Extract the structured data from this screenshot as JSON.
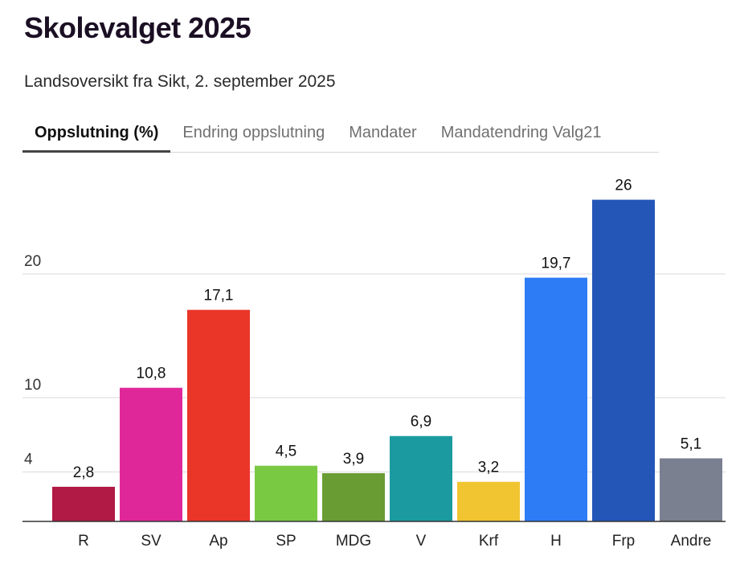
{
  "header": {
    "title": "Skolevalget 2025",
    "subtitle": "Landsoversikt fra Sikt, 2. september 2025"
  },
  "tabs": [
    {
      "label": "Oppslutning (%)",
      "active": true
    },
    {
      "label": "Endring oppslutning",
      "active": false
    },
    {
      "label": "Mandater",
      "active": false
    },
    {
      "label": "Mandatendring Valg21",
      "active": false
    }
  ],
  "chart_data": {
    "type": "bar",
    "categories": [
      "R",
      "SV",
      "Ap",
      "SP",
      "MDG",
      "V",
      "Krf",
      "H",
      "Frp",
      "Andre"
    ],
    "values": [
      2.8,
      10.8,
      17.1,
      4.5,
      3.9,
      6.9,
      3.2,
      19.7,
      26,
      5.1
    ],
    "value_labels": [
      "2,8",
      "10,8",
      "17,1",
      "4,5",
      "3,9",
      "6,9",
      "3,2",
      "19,7",
      "26",
      "5,1"
    ],
    "colors": [
      "#b01a44",
      "#e0279a",
      "#ea3529",
      "#7ac943",
      "#6a9c34",
      "#1b9b9f",
      "#f1c531",
      "#2d7cf6",
      "#2456b8",
      "#7a8090"
    ],
    "yticks": [
      4,
      10,
      20
    ],
    "ytick_labels": [
      "4",
      "10",
      "20"
    ],
    "ylim": [
      0,
      26
    ],
    "grid": true
  }
}
